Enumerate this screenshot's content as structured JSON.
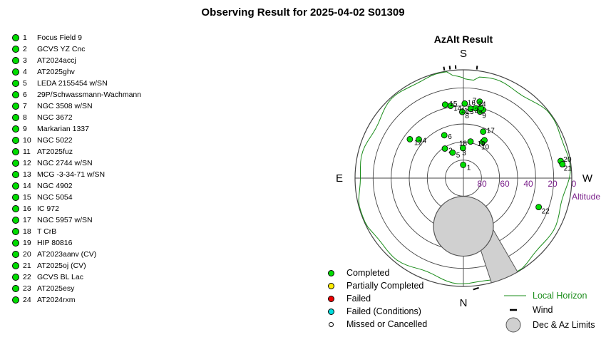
{
  "title": "Observing Result for 2025-04-02 S01309",
  "targets": [
    {
      "num": "1",
      "name": "Focus Field 9"
    },
    {
      "num": "2",
      "name": "GCVS YZ Cnc"
    },
    {
      "num": "3",
      "name": "AT2024accj"
    },
    {
      "num": "4",
      "name": "AT2025ghv"
    },
    {
      "num": "5",
      "name": "LEDA 2155454 w/SN"
    },
    {
      "num": "6",
      "name": "29P/Schwassmann-Wachmann"
    },
    {
      "num": "7",
      "name": "NGC 3508 w/SN"
    },
    {
      "num": "8",
      "name": "NGC 3672"
    },
    {
      "num": "9",
      "name": "Markarian 1337"
    },
    {
      "num": "10",
      "name": "NGC 5022"
    },
    {
      "num": "11",
      "name": "AT2025fuz"
    },
    {
      "num": "12",
      "name": "NGC 2744 w/SN"
    },
    {
      "num": "13",
      "name": "MCG -3-34-71 w/SN"
    },
    {
      "num": "14",
      "name": "NGC 4902"
    },
    {
      "num": "15",
      "name": "NGC 5054"
    },
    {
      "num": "16",
      "name": "IC 972"
    },
    {
      "num": "17",
      "name": "NGC 5957 w/SN"
    },
    {
      "num": "18",
      "name": "T CrB"
    },
    {
      "num": "19",
      "name": "HIP 80816"
    },
    {
      "num": "20",
      "name": "AT2023aanv (CV)"
    },
    {
      "num": "21",
      "name": "AT2025oj (CV)"
    },
    {
      "num": "22",
      "name": "GCVS BL Lac"
    },
    {
      "num": "23",
      "name": "AT2025esy"
    },
    {
      "num": "24",
      "name": "AT2024rxm"
    }
  ],
  "chart_data": {
    "type": "polar-scatter",
    "title": "AzAlt Result",
    "directions": {
      "south": "S",
      "west": "W",
      "north": "N",
      "east": "E"
    },
    "altitude_ticks": [
      "80",
      "60",
      "40",
      "20",
      "0"
    ],
    "altitude_label": "Altitude",
    "ring_altitudes": [
      75,
      60,
      45,
      30,
      15,
      0
    ],
    "points": [
      {
        "label": "1",
        "az": 359,
        "alt": 79
      },
      {
        "label": "2",
        "az": 328,
        "alt": 61
      },
      {
        "label": "3",
        "az": 359,
        "alt": 65
      },
      {
        "label": "4",
        "az": 311,
        "alt": 41
      },
      {
        "label": "5",
        "az": 337,
        "alt": 67
      },
      {
        "label": "6",
        "az": 336,
        "alt": 51
      },
      {
        "label": "7",
        "az": 12,
        "alt": 25
      },
      {
        "label": "8",
        "az": 359,
        "alt": 35
      },
      {
        "label": "9",
        "az": 14,
        "alt": 33
      },
      {
        "label": "10",
        "az": 28,
        "alt": 56
      },
      {
        "label": "11",
        "az": 6,
        "alt": 32
      },
      {
        "label": "12",
        "az": 306,
        "alt": 35
      },
      {
        "label": "13",
        "az": 10,
        "alt": 31
      },
      {
        "label": "14",
        "az": 350,
        "alt": 29
      },
      {
        "label": "15",
        "az": 346,
        "alt": 27
      },
      {
        "label": "16",
        "az": 1,
        "alt": 28
      },
      {
        "label": "17",
        "az": 23,
        "alt": 48
      },
      {
        "label": "18",
        "az": 11,
        "alt": 59
      },
      {
        "label": "19",
        "az": 29,
        "alt": 54
      },
      {
        "label": "20",
        "az": 80,
        "alt": 8
      },
      {
        "label": "21",
        "az": 82,
        "alt": 7
      },
      {
        "label": "22",
        "az": 111,
        "alt": 23
      },
      {
        "label": "23",
        "az": 16,
        "alt": 31
      },
      {
        "label": "24",
        "az": 14,
        "alt": 30
      }
    ],
    "wind_azimuths": [
      7,
      356,
      353,
      350
    ]
  },
  "legend": {
    "completed": {
      "label": "Completed",
      "color": "#00dd00"
    },
    "partial": {
      "label": "Partially Completed",
      "color": "#ffee00"
    },
    "failed": {
      "label": "Failed",
      "color": "#ee0000"
    },
    "failed_conditions": {
      "label": "Failed (Conditions)",
      "color": "#00dddd"
    },
    "missed": {
      "label": "Missed or Cancelled",
      "color": "#ffffff"
    },
    "local_horizon": {
      "label": "Local Horizon",
      "color": "#1a8c1a"
    },
    "wind": {
      "label": "Wind"
    },
    "limits": {
      "label": "Dec & Az Limits",
      "color": "#d0d0d0"
    }
  }
}
